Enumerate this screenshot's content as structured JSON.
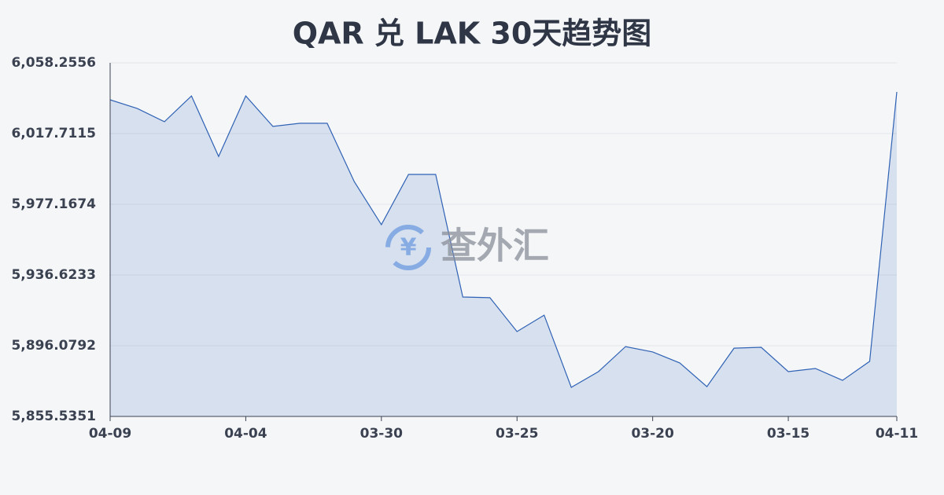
{
  "chart_data": {
    "type": "line",
    "title": "QAR 兑 LAK 30天趋势图",
    "watermark": "查外汇",
    "categories": [
      "04-09",
      null,
      null,
      null,
      null,
      "04-04",
      null,
      null,
      null,
      null,
      "03-30",
      null,
      null,
      null,
      null,
      "03-25",
      null,
      null,
      null,
      null,
      "03-20",
      null,
      null,
      null,
      null,
      "03-15",
      null,
      null,
      null,
      "04-11"
    ],
    "values": [
      6037.1,
      6032.1,
      6024.5,
      6039.3,
      6004.6,
      6039.3,
      6021.8,
      6023.6,
      6023.6,
      5990.2,
      5965.5,
      5994.3,
      5994.3,
      5924.0,
      5923.6,
      5904.2,
      5913.6,
      5872.2,
      5881.2,
      5895.6,
      5892.5,
      5886.2,
      5872.6,
      5894.7,
      5895.2,
      5881.2,
      5883.0,
      5876.2,
      5887.1,
      6041.6
    ],
    "color": "#2f62b5",
    "ylim": [
      5855.5351,
      6058.2556
    ],
    "yticks": [
      {
        "value": 5855.5351,
        "label": "5,855.5351"
      },
      {
        "value": 5896.0792,
        "label": "5,896.0792"
      },
      {
        "value": 5936.6233,
        "label": "5,936.6233"
      },
      {
        "value": 5977.1674,
        "label": "5,977.1674"
      },
      {
        "value": 6017.7115,
        "label": "6,017.7115"
      },
      {
        "value": 6058.2556,
        "label": "6,058.2556"
      }
    ],
    "grid": true
  }
}
